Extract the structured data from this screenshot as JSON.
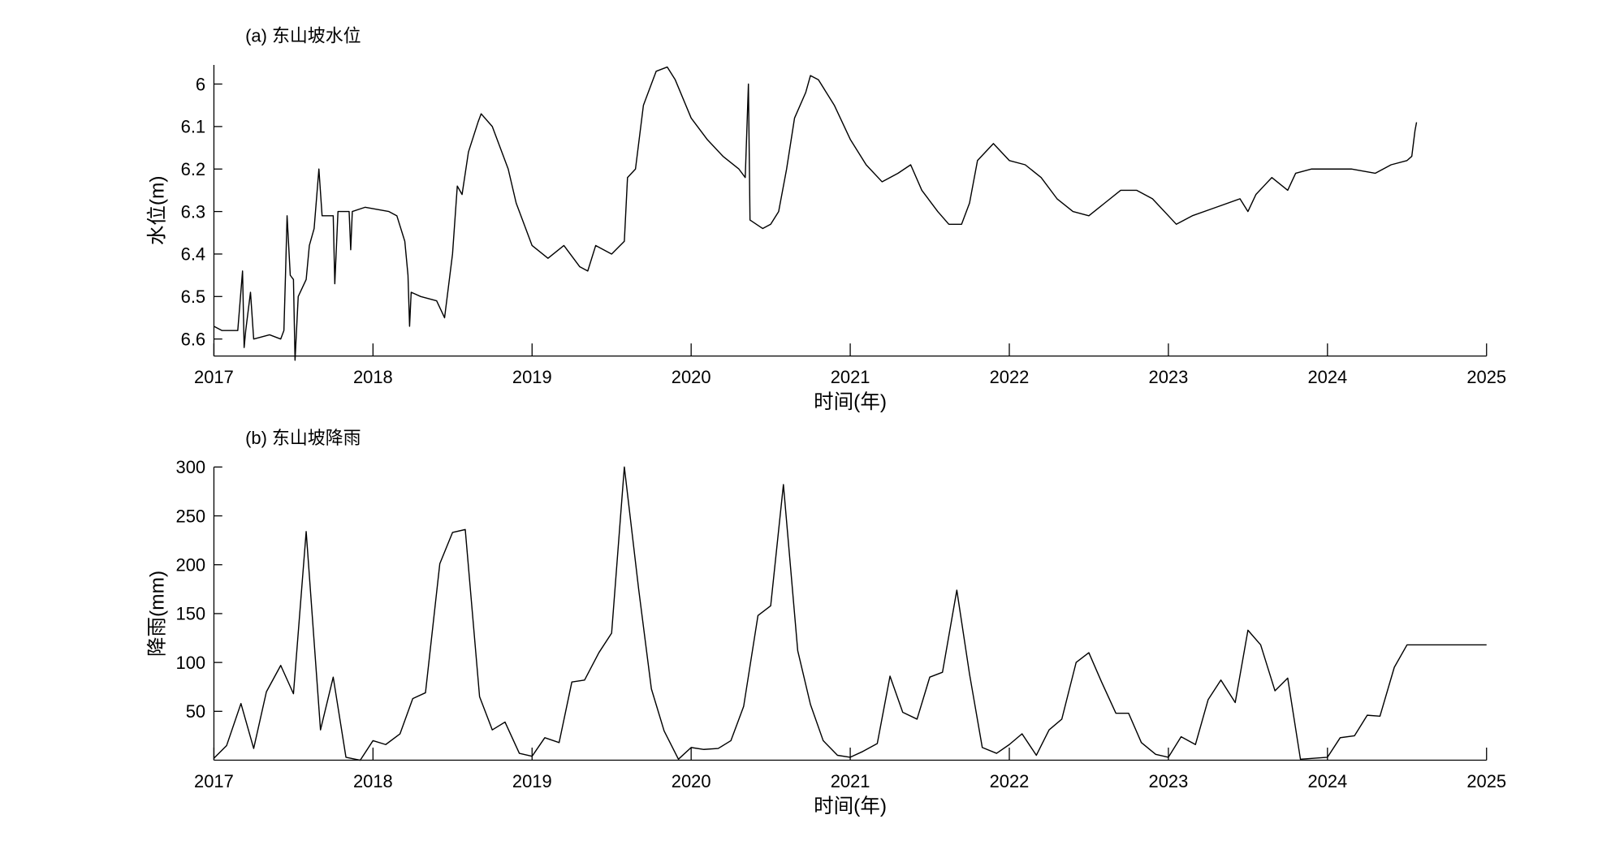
{
  "chart_data": [
    {
      "type": "line",
      "title": "(a) 东山坡水位",
      "xlabel": "时间(年)",
      "ylabel": "水位(m)",
      "color": "#000000",
      "xlim": [
        2017,
        2025
      ],
      "xticks": [
        2017,
        2018,
        2019,
        2020,
        2021,
        2022,
        2023,
        2024,
        2025
      ],
      "ylim": [
        6.64,
        5.955
      ],
      "yticks": [
        6,
        6.1,
        6.2,
        6.3,
        6.4,
        6.5,
        6.6
      ],
      "x": [
        2017.0,
        2017.05,
        2017.15,
        2017.18,
        2017.19,
        2017.2,
        2017.23,
        2017.25,
        2017.35,
        2017.42,
        2017.44,
        2017.45,
        2017.46,
        2017.48,
        2017.5,
        2017.51,
        2017.53,
        2017.58,
        2017.6,
        2017.63,
        2017.66,
        2017.68,
        2017.75,
        2017.76,
        2017.78,
        2017.85,
        2017.86,
        2017.87,
        2017.95,
        2018.1,
        2018.15,
        2018.2,
        2018.22,
        2018.23,
        2018.24,
        2018.3,
        2018.4,
        2018.45,
        2018.5,
        2018.53,
        2018.56,
        2018.6,
        2018.66,
        2018.68,
        2018.75,
        2018.85,
        2018.9,
        2019.0,
        2019.1,
        2019.2,
        2019.3,
        2019.35,
        2019.4,
        2019.5,
        2019.58,
        2019.6,
        2019.65,
        2019.7,
        2019.75,
        2019.78,
        2019.85,
        2019.9,
        2020.0,
        2020.1,
        2020.2,
        2020.3,
        2020.34,
        2020.36,
        2020.37,
        2020.45,
        2020.5,
        2020.55,
        2020.6,
        2020.65,
        2020.72,
        2020.75,
        2020.8,
        2020.9,
        2021.0,
        2021.1,
        2021.2,
        2021.3,
        2021.38,
        2021.45,
        2021.55,
        2021.62,
        2021.7,
        2021.75,
        2021.8,
        2021.9,
        2022.0,
        2022.1,
        2022.2,
        2022.3,
        2022.4,
        2022.5,
        2022.6,
        2022.7,
        2022.8,
        2022.9,
        2023.0,
        2023.05,
        2023.15,
        2023.3,
        2023.45,
        2023.5,
        2023.55,
        2023.6,
        2023.65,
        2023.75,
        2023.8,
        2023.9,
        2024.0,
        2024.15,
        2024.3,
        2024.4,
        2024.5,
        2024.53,
        2024.55,
        2024.56
      ],
      "values": [
        6.57,
        6.58,
        6.58,
        6.44,
        6.62,
        6.58,
        6.49,
        6.6,
        6.59,
        6.6,
        6.58,
        6.45,
        6.31,
        6.45,
        6.46,
        6.65,
        6.5,
        6.46,
        6.38,
        6.34,
        6.2,
        6.31,
        6.31,
        6.47,
        6.3,
        6.3,
        6.39,
        6.3,
        6.29,
        6.3,
        6.31,
        6.37,
        6.45,
        6.57,
        6.49,
        6.5,
        6.51,
        6.55,
        6.4,
        6.24,
        6.26,
        6.16,
        6.09,
        6.07,
        6.1,
        6.2,
        6.28,
        6.38,
        6.41,
        6.38,
        6.43,
        6.44,
        6.38,
        6.4,
        6.37,
        6.22,
        6.2,
        6.05,
        6.0,
        5.97,
        5.96,
        5.99,
        6.08,
        6.13,
        6.17,
        6.2,
        6.22,
        6.0,
        6.32,
        6.34,
        6.33,
        6.3,
        6.2,
        6.08,
        6.02,
        5.98,
        5.99,
        6.05,
        6.13,
        6.19,
        6.23,
        6.21,
        6.19,
        6.25,
        6.3,
        6.33,
        6.33,
        6.28,
        6.18,
        6.14,
        6.18,
        6.19,
        6.22,
        6.27,
        6.3,
        6.31,
        6.28,
        6.25,
        6.25,
        6.27,
        6.31,
        6.33,
        6.31,
        6.29,
        6.27,
        6.3,
        6.26,
        6.24,
        6.22,
        6.25,
        6.21,
        6.2,
        6.2,
        6.2,
        6.21,
        6.19,
        6.18,
        6.17,
        6.11,
        6.09
      ]
    },
    {
      "type": "line",
      "title": "(b) 东山坡降雨",
      "xlabel": "时间(年)",
      "ylabel": "降雨(mm)",
      "color": "#000000",
      "xlim": [
        2017,
        2025
      ],
      "xticks": [
        2017,
        2018,
        2019,
        2020,
        2021,
        2022,
        2023,
        2024,
        2025
      ],
      "ylim": [
        0,
        300
      ],
      "yticks": [
        50,
        100,
        150,
        200,
        250,
        300
      ],
      "x": [
        2017.0,
        2017.08,
        2017.17,
        2017.25,
        2017.33,
        2017.42,
        2017.5,
        2017.58,
        2017.67,
        2017.75,
        2017.83,
        2017.92,
        2018.0,
        2018.08,
        2018.17,
        2018.25,
        2018.33,
        2018.42,
        2018.5,
        2018.58,
        2018.67,
        2018.75,
        2018.83,
        2018.92,
        2019.0,
        2019.08,
        2019.17,
        2019.25,
        2019.33,
        2019.42,
        2019.5,
        2019.58,
        2019.67,
        2019.75,
        2019.83,
        2019.92,
        2020.0,
        2020.08,
        2020.17,
        2020.25,
        2020.33,
        2020.42,
        2020.5,
        2020.58,
        2020.67,
        2020.75,
        2020.83,
        2020.92,
        2021.0,
        2021.08,
        2021.17,
        2021.25,
        2021.33,
        2021.42,
        2021.5,
        2021.58,
        2021.67,
        2021.75,
        2021.83,
        2021.92,
        2022.0,
        2022.08,
        2022.17,
        2022.25,
        2022.33,
        2022.42,
        2022.5,
        2022.58,
        2022.67,
        2022.75,
        2022.83,
        2022.92,
        2023.0,
        2023.08,
        2023.17,
        2023.25,
        2023.33,
        2023.42,
        2023.5,
        2023.58,
        2023.67,
        2023.75,
        2023.83,
        2023.92,
        2024.0,
        2024.08,
        2024.17,
        2024.25,
        2024.33,
        2024.42,
        2024.5,
        2025.0
      ],
      "values": [
        2,
        15,
        58,
        12,
        70,
        97,
        68,
        234,
        31,
        85,
        3,
        0,
        20,
        16,
        27,
        63,
        69,
        201,
        233,
        236,
        65,
        31,
        39,
        7,
        4,
        23,
        18,
        80,
        82,
        110,
        130,
        300,
        175,
        73,
        30,
        1,
        13,
        11,
        12,
        20,
        55,
        148,
        158,
        282,
        112,
        57,
        20,
        5,
        3,
        9,
        17,
        86,
        49,
        42,
        85,
        90,
        174,
        88,
        13,
        7,
        16,
        27,
        5,
        31,
        42,
        100,
        110,
        80,
        48,
        48,
        18,
        6,
        3,
        24,
        16,
        62,
        82,
        59,
        133,
        118,
        71,
        84,
        1,
        2,
        3,
        23,
        25,
        46,
        45,
        95,
        118,
        118
      ]
    }
  ]
}
